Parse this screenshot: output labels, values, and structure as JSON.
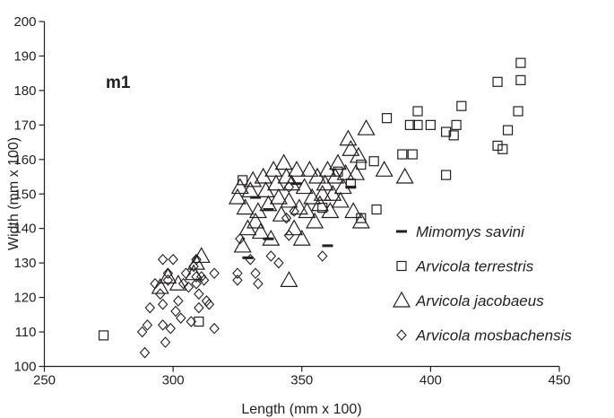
{
  "chart_data": {
    "type": "scatter",
    "title": "",
    "panel_label": "m1",
    "xlabel": "Length (mm x 100)",
    "ylabel": "Width (mm x 100)",
    "xlim": [
      250,
      450
    ],
    "ylim": [
      100,
      200
    ],
    "x_ticks": [
      250,
      300,
      350,
      400,
      450
    ],
    "y_ticks": [
      100,
      110,
      120,
      130,
      140,
      150,
      160,
      170,
      180,
      190,
      200
    ],
    "grid": false,
    "legend_position": "right",
    "series": [
      {
        "name": "Mimomys savini",
        "marker": "dash",
        "points": [
          [
            329,
            131.5
          ],
          [
            332,
            149
          ],
          [
            337,
            145.5
          ],
          [
            337,
            137
          ],
          [
            348,
            153
          ],
          [
            360,
            135
          ],
          [
            369,
            152
          ]
        ]
      },
      {
        "name": "Arvicola terrestris",
        "marker": "square",
        "points": [
          [
            273,
            109
          ],
          [
            310,
            113
          ],
          [
            327,
            154
          ],
          [
            358,
            146
          ],
          [
            364,
            156.5
          ],
          [
            369,
            153
          ],
          [
            373,
            143
          ],
          [
            373,
            158.5
          ],
          [
            378,
            159.5
          ],
          [
            379,
            145.5
          ],
          [
            383,
            172
          ],
          [
            389,
            161.5
          ],
          [
            392,
            170
          ],
          [
            393,
            161.5
          ],
          [
            395,
            174
          ],
          [
            395,
            170
          ],
          [
            400,
            170
          ],
          [
            406,
            168
          ],
          [
            406,
            155.5
          ],
          [
            409,
            167
          ],
          [
            410,
            170
          ],
          [
            412,
            175.5
          ],
          [
            426,
            182.5
          ],
          [
            426,
            164
          ],
          [
            428,
            163
          ],
          [
            430,
            168.5
          ],
          [
            434,
            174
          ],
          [
            435,
            188
          ],
          [
            435,
            183
          ]
        ]
      },
      {
        "name": "Arvicola jacobaeus",
        "marker": "triangle",
        "points": [
          [
            295,
            123
          ],
          [
            298,
            126
          ],
          [
            302,
            124
          ],
          [
            308,
            127
          ],
          [
            309,
            130
          ],
          [
            311,
            132
          ],
          [
            325,
            149
          ],
          [
            326,
            152
          ],
          [
            327,
            135
          ],
          [
            328,
            146
          ],
          [
            329,
            140
          ],
          [
            330,
            151
          ],
          [
            331,
            154
          ],
          [
            332,
            142
          ],
          [
            333,
            145
          ],
          [
            334,
            139
          ],
          [
            335,
            155
          ],
          [
            336,
            151
          ],
          [
            337,
            147
          ],
          [
            338,
            137
          ],
          [
            339,
            157
          ],
          [
            340,
            153
          ],
          [
            341,
            149
          ],
          [
            342,
            144
          ],
          [
            343,
            159
          ],
          [
            344,
            155
          ],
          [
            345,
            125
          ],
          [
            345,
            148
          ],
          [
            346,
            153
          ],
          [
            347,
            140
          ],
          [
            348,
            157
          ],
          [
            349,
            146
          ],
          [
            350,
            137
          ],
          [
            351,
            152
          ],
          [
            352,
            145
          ],
          [
            353,
            157
          ],
          [
            354,
            149
          ],
          [
            355,
            142
          ],
          [
            356,
            155
          ],
          [
            357,
            147
          ],
          [
            358,
            150
          ],
          [
            359,
            153
          ],
          [
            360,
            157
          ],
          [
            361,
            145
          ],
          [
            362,
            150
          ],
          [
            363,
            155
          ],
          [
            364,
            159
          ],
          [
            365,
            148
          ],
          [
            366,
            152
          ],
          [
            367,
            156
          ],
          [
            368,
            166
          ],
          [
            369,
            163
          ],
          [
            370,
            145
          ],
          [
            371,
            156
          ],
          [
            372,
            161
          ],
          [
            373,
            142
          ],
          [
            375,
            169
          ],
          [
            382,
            157
          ],
          [
            390,
            155
          ]
        ]
      },
      {
        "name": "Arvicola mosbachensis",
        "marker": "diamond",
        "points": [
          [
            288,
            110
          ],
          [
            289,
            104
          ],
          [
            290,
            112
          ],
          [
            291,
            117
          ],
          [
            293,
            124
          ],
          [
            295,
            121
          ],
          [
            296,
            131
          ],
          [
            296,
            118
          ],
          [
            296,
            112
          ],
          [
            297,
            107
          ],
          [
            298,
            127
          ],
          [
            298,
            125
          ],
          [
            299,
            111
          ],
          [
            300,
            131
          ],
          [
            301,
            116
          ],
          [
            302,
            119
          ],
          [
            303,
            114
          ],
          [
            304,
            124
          ],
          [
            305,
            127
          ],
          [
            306,
            123
          ],
          [
            307,
            113
          ],
          [
            308,
            129
          ],
          [
            309,
            131
          ],
          [
            309,
            126
          ],
          [
            309,
            124
          ],
          [
            310,
            117
          ],
          [
            310,
            121
          ],
          [
            311,
            126
          ],
          [
            312,
            125
          ],
          [
            313,
            119
          ],
          [
            314,
            118
          ],
          [
            316,
            127
          ],
          [
            316,
            111
          ],
          [
            325,
            125
          ],
          [
            325,
            127
          ],
          [
            326,
            137
          ],
          [
            330,
            131
          ],
          [
            332,
            127
          ],
          [
            333,
            124
          ],
          [
            338,
            132
          ],
          [
            341,
            130
          ],
          [
            344,
            143
          ],
          [
            345,
            138
          ],
          [
            345,
            152
          ],
          [
            347,
            145
          ],
          [
            358,
            132
          ]
        ]
      }
    ]
  }
}
